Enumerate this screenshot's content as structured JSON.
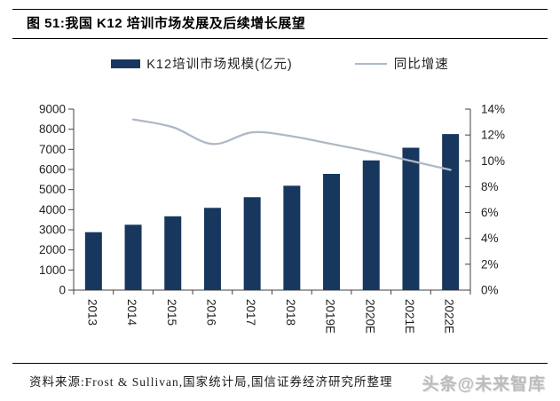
{
  "figure": {
    "title": "图 51:我国 K12 培训市场发展及后续增长展望"
  },
  "legend": {
    "bar_label": "K12培训市场规模(亿元)",
    "line_label": "同比增速"
  },
  "footer": {
    "source": "资料来源:Frost & Sullivan,国家统计局,国信证券经济研究所整理",
    "watermark": "头条@未来智库"
  },
  "colors": {
    "bar": "#17375E",
    "line": "#AFB9C6",
    "axis": "#404040",
    "tick_text": "#1f1f1f"
  },
  "chart_data": {
    "type": "bar",
    "title": "我国K12培训市场发展及后续增长展望",
    "categories": [
      "2013",
      "2014",
      "2015",
      "2016",
      "2017",
      "2018",
      "2019E",
      "2020E",
      "2021E",
      "2022E"
    ],
    "series": [
      {
        "name": "K12培训市场规模(亿元)",
        "chart_type": "bar",
        "axis": "left",
        "values": [
          2880,
          3250,
          3670,
          4090,
          4620,
          5190,
          5780,
          6450,
          7080,
          7760
        ]
      },
      {
        "name": "同比增速",
        "chart_type": "line",
        "axis": "right",
        "values": [
          null,
          13.2,
          12.6,
          11.3,
          12.2,
          11.9,
          11.3,
          10.7,
          10.0,
          9.3
        ]
      }
    ],
    "left_axis": {
      "min": 0,
      "max": 9000,
      "step": 1000,
      "tick_labels": [
        "0",
        "1000",
        "2000",
        "3000",
        "4000",
        "5000",
        "6000",
        "7000",
        "8000",
        "9000"
      ]
    },
    "right_axis": {
      "min": 0,
      "max": 14,
      "step": 2,
      "tick_labels": [
        "0%",
        "2%",
        "4%",
        "6%",
        "8%",
        "10%",
        "12%",
        "14%"
      ]
    },
    "xlabel": "",
    "ylabel": "",
    "grid": false,
    "legend_position": "top",
    "line_smoothing": true
  }
}
